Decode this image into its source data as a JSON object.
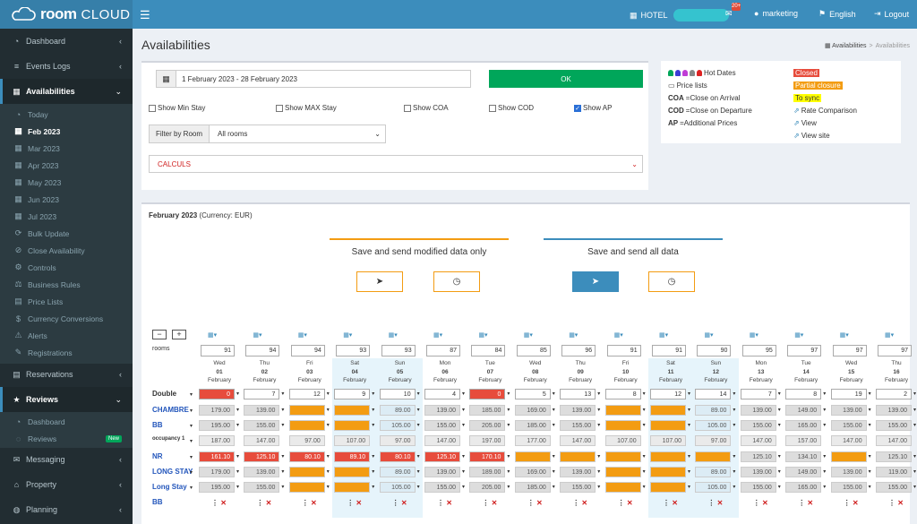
{
  "header": {
    "logo_a": "room",
    "logo_b": "CLOUD",
    "hotel_label": "HOTEL",
    "notif_badge": "20+",
    "user": "marketing",
    "language": "English",
    "logout": "Logout"
  },
  "sidebar": {
    "items": [
      {
        "label": "Dashboard",
        "icon": "dashboard-icon"
      },
      {
        "label": "Events Logs",
        "icon": "list-icon"
      },
      {
        "label": "Availabilities",
        "icon": "calendar-icon"
      },
      {
        "label": "Reservations",
        "icon": "book-icon"
      },
      {
        "label": "Reviews",
        "icon": "star-icon"
      },
      {
        "label": "Messaging",
        "icon": "chat-icon"
      },
      {
        "label": "Property",
        "icon": "home-icon"
      },
      {
        "label": "Planning",
        "icon": "globe-icon"
      }
    ],
    "avail_sub": [
      "Today",
      "Feb 2023",
      "Mar 2023",
      "Apr 2023",
      "May 2023",
      "Jun 2023",
      "Jul 2023",
      "Bulk Update",
      "Close Availability",
      "Controls",
      "Business Rules",
      "Price Lists",
      "Currency Conversions",
      "Alerts",
      "Registrations"
    ],
    "reviews_sub": [
      "Dashboard",
      "Reviews"
    ],
    "new_badge": "New"
  },
  "page": {
    "title": "Availabilities",
    "breadcrumb_home": "Availabilities",
    "breadcrumb_current": "Availabilities"
  },
  "filters": {
    "date_range": "1 February 2023 - 28 February 2023",
    "ok": "OK",
    "checks": [
      {
        "label": "Show Min Stay",
        "checked": false
      },
      {
        "label": "Show MAX Stay",
        "checked": false
      },
      {
        "label": "Show COA",
        "checked": false
      },
      {
        "label": "Show COD",
        "checked": false
      },
      {
        "label": "Show AP",
        "checked": true
      }
    ],
    "filter_label": "Filter by Room",
    "room_select": "All rooms",
    "calculs": "CALCULS"
  },
  "legend": {
    "hot_dates": "Hot Dates",
    "price_lists": "Price lists",
    "coa_key": "COA",
    "coa_text": "=Close on Arrival",
    "cod_key": "COD",
    "cod_text": "=Close on Departure",
    "ap_key": "AP",
    "ap_text": "=Additional Prices",
    "closed": "Closed",
    "partial": "Partial closure",
    "tosync": "To sync",
    "rate_comp": "Rate Comparison",
    "view": "View",
    "view_site": "View site",
    "colors": {
      "closed": "#e74c3c",
      "partial": "#f39c12",
      "tosync": "#ffff00"
    }
  },
  "grid": {
    "month": "February 2023",
    "currency": " (Currency: EUR)",
    "save_modified": "Save and send modified data only",
    "save_all": "Save and send all data",
    "rooms_label": "rooms",
    "days": [
      {
        "dow": "Wed",
        "d": "01",
        "m": "February",
        "rooms": "91",
        "avail": "0"
      },
      {
        "dow": "Thu",
        "d": "02",
        "m": "February",
        "rooms": "94",
        "avail": "7"
      },
      {
        "dow": "Fri",
        "d": "03",
        "m": "February",
        "rooms": "94",
        "avail": "12"
      },
      {
        "dow": "Sat",
        "d": "04",
        "m": "February",
        "rooms": "93",
        "avail": "9"
      },
      {
        "dow": "Sun",
        "d": "05",
        "m": "February",
        "rooms": "93",
        "avail": "10"
      },
      {
        "dow": "Mon",
        "d": "06",
        "m": "February",
        "rooms": "87",
        "avail": "4"
      },
      {
        "dow": "Tue",
        "d": "07",
        "m": "February",
        "rooms": "84",
        "avail": "0"
      },
      {
        "dow": "Wed",
        "d": "08",
        "m": "February",
        "rooms": "85",
        "avail": "5"
      },
      {
        "dow": "Thu",
        "d": "09",
        "m": "February",
        "rooms": "96",
        "avail": "13"
      },
      {
        "dow": "Fri",
        "d": "10",
        "m": "February",
        "rooms": "91",
        "avail": "8"
      },
      {
        "dow": "Sat",
        "d": "11",
        "m": "February",
        "rooms": "91",
        "avail": "12"
      },
      {
        "dow": "Sun",
        "d": "12",
        "m": "February",
        "rooms": "90",
        "avail": "14"
      },
      {
        "dow": "Mon",
        "d": "13",
        "m": "February",
        "rooms": "95",
        "avail": "7"
      },
      {
        "dow": "Tue",
        "d": "14",
        "m": "February",
        "rooms": "97",
        "avail": "8"
      },
      {
        "dow": "Wed",
        "d": "15",
        "m": "February",
        "rooms": "97",
        "avail": "19"
      },
      {
        "dow": "Thu",
        "d": "16",
        "m": "February",
        "rooms": "97",
        "avail": "2"
      }
    ],
    "rows": [
      {
        "label": "Double",
        "kind": "avail"
      },
      {
        "label": "CHAMBRE",
        "prices": [
          "179.00",
          "139.00",
          "",
          "",
          "89.00",
          "139.00",
          "185.00",
          "169.00",
          "139.00",
          "",
          "",
          "89.00",
          "139.00",
          "149.00",
          "139.00",
          "139.00"
        ]
      },
      {
        "label": "BB",
        "prices": [
          "195.00",
          "155.00",
          "",
          "",
          "105.00",
          "155.00",
          "205.00",
          "185.00",
          "155.00",
          "",
          "",
          "105.00",
          "155.00",
          "165.00",
          "155.00",
          "155.00"
        ]
      },
      {
        "label": "occupancy 1",
        "small": true,
        "prices": [
          "187.00",
          "147.00",
          "97.00",
          "107.00",
          "97.00",
          "147.00",
          "197.00",
          "177.00",
          "147.00",
          "107.00",
          "107.00",
          "97.00",
          "147.00",
          "157.00",
          "147.00",
          "147.00"
        ]
      },
      {
        "label": "NR",
        "prices": [
          "161.10",
          "125.10",
          "80.10",
          "89.10",
          "80.10",
          "125.10",
          "170.10",
          "",
          "",
          "",
          "",
          "",
          "125.10",
          "134.10",
          "",
          "125.10"
        ]
      },
      {
        "label": "LONG STAY",
        "prices": [
          "179.00",
          "139.00",
          "",
          "",
          "89.00",
          "139.00",
          "189.00",
          "169.00",
          "139.00",
          "",
          "",
          "89.00",
          "139.00",
          "149.00",
          "139.00",
          "119.00"
        ]
      },
      {
        "label": "Long Stay",
        "prices": [
          "195.00",
          "155.00",
          "",
          "",
          "105.00",
          "155.00",
          "205.00",
          "185.00",
          "155.00",
          "",
          "",
          "105.00",
          "155.00",
          "165.00",
          "155.00",
          "155.00"
        ]
      },
      {
        "label": "BB",
        "kind": "actions"
      }
    ]
  }
}
